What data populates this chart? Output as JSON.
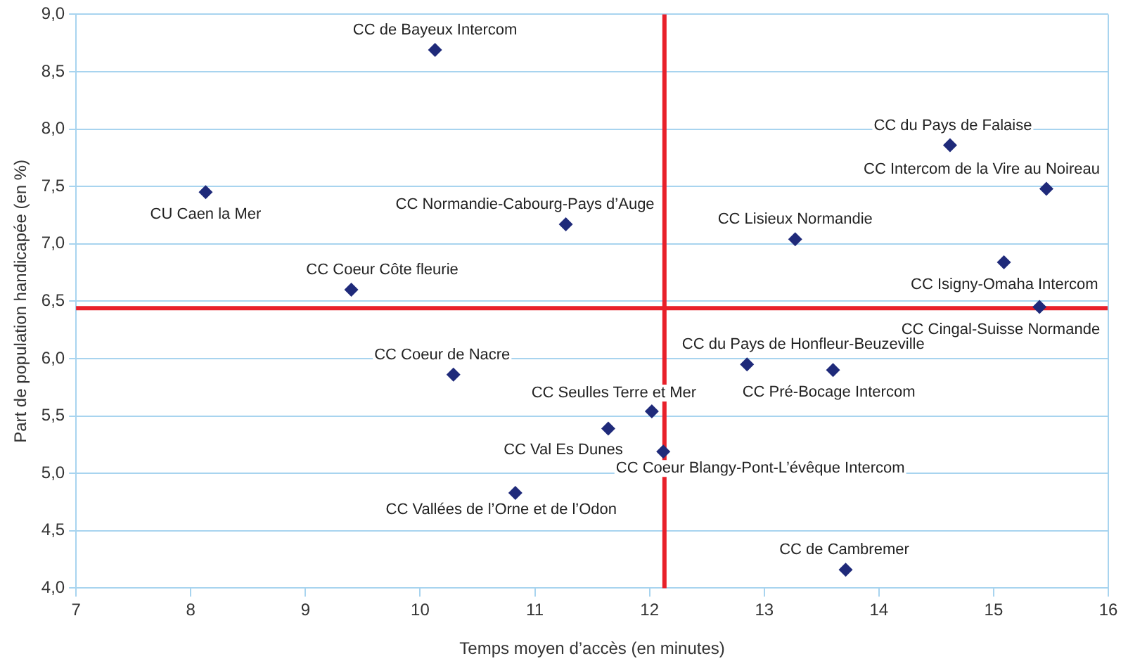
{
  "chart_data": {
    "type": "scatter",
    "xlabel": "Temps moyen d’accès (en minutes)",
    "ylabel": "Part de population handicapée (en %)",
    "series": [
      {
        "color": "#1f2a7a",
        "x": [
          10.13,
          8.13,
          11.27,
          9.4,
          14.62,
          15.46,
          13.27,
          15.09,
          15.4,
          10.29,
          12.85,
          13.6,
          12.02,
          11.64,
          12.12,
          10.83,
          13.71
        ],
        "values": [
          8.69,
          7.45,
          7.17,
          6.6,
          7.86,
          7.48,
          7.04,
          6.84,
          6.45,
          5.86,
          5.95,
          5.9,
          5.54,
          5.39,
          5.19,
          4.83,
          4.16
        ]
      }
    ],
    "marker": "diamond",
    "annotations": [
      {
        "text": "CC de Bayeux Intercom",
        "x": 10.13,
        "y": 8.69
      },
      {
        "text": "CU Caen la Mer",
        "x": 8.13,
        "y": 7.45
      },
      {
        "text": "CC Normandie-Cabourg-Pays d’Auge",
        "x": 11.27,
        "y": 7.17
      },
      {
        "text": "CC Coeur Côte fleurie",
        "x": 9.4,
        "y": 6.6
      },
      {
        "text": "CC du Pays de Falaise",
        "x": 14.62,
        "y": 7.86
      },
      {
        "text": "CC Intercom de la Vire au Noireau",
        "x": 15.46,
        "y": 7.48
      },
      {
        "text": "CC Lisieux Normandie",
        "x": 13.27,
        "y": 7.04
      },
      {
        "text": "CC Isigny-Omaha Intercom",
        "x": 15.09,
        "y": 6.84
      },
      {
        "text": "CC Cingal-Suisse Normande",
        "x": 15.4,
        "y": 6.45
      },
      {
        "text": "CC Coeur de Nacre",
        "x": 10.29,
        "y": 5.86
      },
      {
        "text": "CC du Pays de Honfleur-Beuzeville",
        "x": 12.85,
        "y": 5.95
      },
      {
        "text": "CC Pré-Bocage Intercom",
        "x": 13.6,
        "y": 5.9
      },
      {
        "text": "CC Seulles Terre et Mer",
        "x": 12.02,
        "y": 5.54
      },
      {
        "text": "CC Val Es Dunes",
        "x": 11.64,
        "y": 5.39
      },
      {
        "text": "CC Coeur Blangy-Pont-L’évêque Intercom",
        "x": 12.12,
        "y": 5.19
      },
      {
        "text": "CC Vallées de l’Orne et de l’Odon",
        "x": 10.83,
        "y": 4.83
      },
      {
        "text": "CC de Cambremer",
        "x": 13.71,
        "y": 4.16
      }
    ],
    "ref_lines": [
      {
        "axis": "x",
        "value": 12.13,
        "color": "#e8202a"
      },
      {
        "axis": "y",
        "value": 6.44,
        "color": "#e8202a"
      }
    ],
    "xlim": [
      7,
      16
    ],
    "xticks": [
      7,
      8,
      9,
      10,
      11,
      12,
      13,
      14,
      15,
      16
    ],
    "ylim": [
      4,
      9
    ],
    "yticks": [
      {
        "value": 4,
        "label": "4,0"
      },
      {
        "value": 4.5,
        "label": "4,5"
      },
      {
        "value": 5,
        "label": "5,0"
      },
      {
        "value": 5.5,
        "label": "5,5"
      },
      {
        "value": 6,
        "label": "6,0"
      },
      {
        "value": 6.5,
        "label": "6,5"
      },
      {
        "value": 7,
        "label": "7,0"
      },
      {
        "value": 7.5,
        "label": "7,5"
      },
      {
        "value": 8,
        "label": "8,0"
      },
      {
        "value": 8.5,
        "label": "8,5"
      },
      {
        "value": 9,
        "label": "9,0"
      }
    ],
    "grid": "y",
    "legend": false
  }
}
